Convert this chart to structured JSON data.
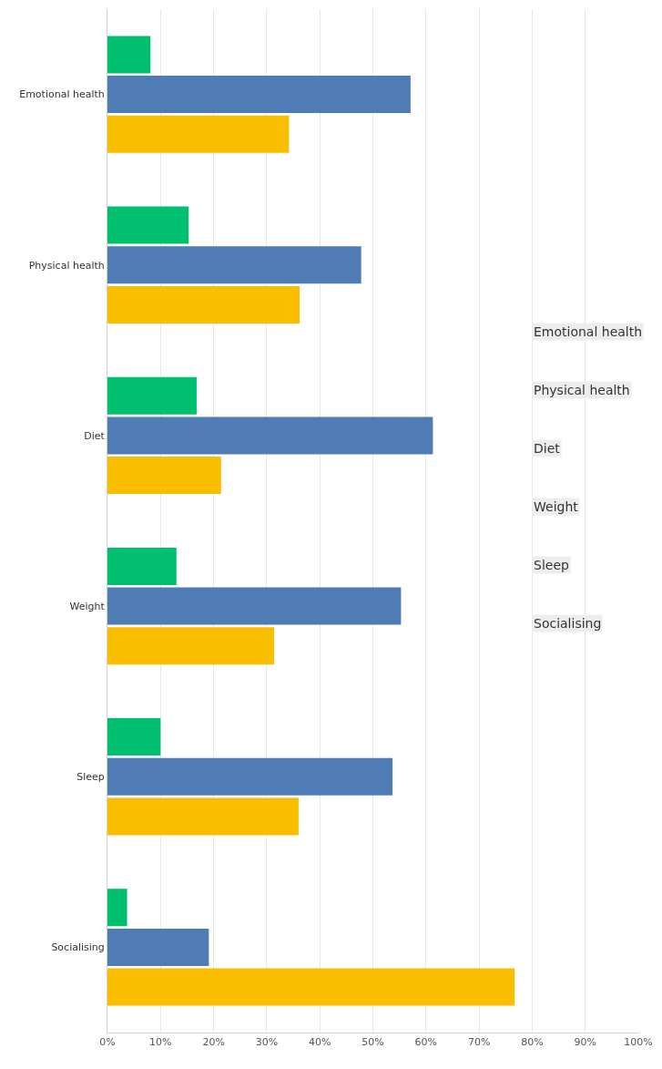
{
  "chart_data": {
    "type": "bar",
    "orientation": "horizontal",
    "categories": [
      "Emotional health",
      "Physical health",
      "Diet",
      "Weight",
      "Sleep",
      "Socialising"
    ],
    "series": [
      {
        "color": "#00bf6f",
        "values": [
          8.1,
          15.3,
          16.8,
          13.0,
          10.0,
          3.7
        ]
      },
      {
        "color": "#507cb6",
        "values": [
          57.1,
          47.8,
          61.3,
          55.3,
          53.7,
          19.1
        ]
      },
      {
        "color": "#f9be00",
        "values": [
          34.2,
          36.2,
          21.4,
          31.4,
          36.0,
          76.7
        ]
      }
    ],
    "xlim": [
      0,
      100
    ],
    "xticks": [
      {
        "value": 0,
        "label": "0%"
      },
      {
        "value": 10,
        "label": "10%"
      },
      {
        "value": 20,
        "label": "20%"
      },
      {
        "value": 30,
        "label": "30%"
      },
      {
        "value": 40,
        "label": "40%"
      },
      {
        "value": 50,
        "label": "50%"
      },
      {
        "value": 60,
        "label": "60%"
      },
      {
        "value": 70,
        "label": "70%"
      },
      {
        "value": 80,
        "label": "80%"
      },
      {
        "value": 90,
        "label": "90%"
      },
      {
        "value": 100,
        "label": "100%"
      }
    ],
    "grid": "x",
    "annotations": [
      "Emotional health",
      "Physical health",
      "Diet",
      "Weight",
      "Sleep",
      "Socialising"
    ]
  }
}
